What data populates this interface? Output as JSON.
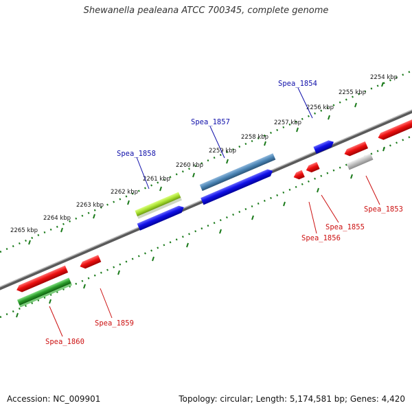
{
  "title": "Shewanella pealeana ATCC 700345, complete genome",
  "footer": {
    "accession": "Accession: NC_009901",
    "summary": "Topology: circular; Length: 5,174,581 bp; Genes: 4,420"
  },
  "colors": {
    "backbone": "#7a7a7a",
    "ruler_ticks": "#1a7a1a",
    "forward_label": "#1010aa",
    "reverse_label": "#cc1010",
    "gene_red": "#e81010",
    "gene_blue": "#1010e0",
    "gene_steelblue": "#4a84b4",
    "gene_lightgreen": "#a8e030",
    "gene_green": "#2a9a2a",
    "gene_grey": "#b0b0b0"
  },
  "ruler_labels": [
    "2254 kbp",
    "2255 kbp",
    "2256 kbp",
    "2257 kbp",
    "2258 kbp",
    "2259 kbp",
    "2260 kbp",
    "2261 kbp",
    "2262 kbp",
    "2263 kbp",
    "2264 kbp",
    "2265 kbp"
  ],
  "gene_labels": {
    "forward": [
      "Spea_1854",
      "Spea_1857",
      "Spea_1858"
    ],
    "reverse": [
      "Spea_1853",
      "Spea_1855",
      "Spea_1856",
      "Spea_1859",
      "Spea_1860"
    ]
  }
}
